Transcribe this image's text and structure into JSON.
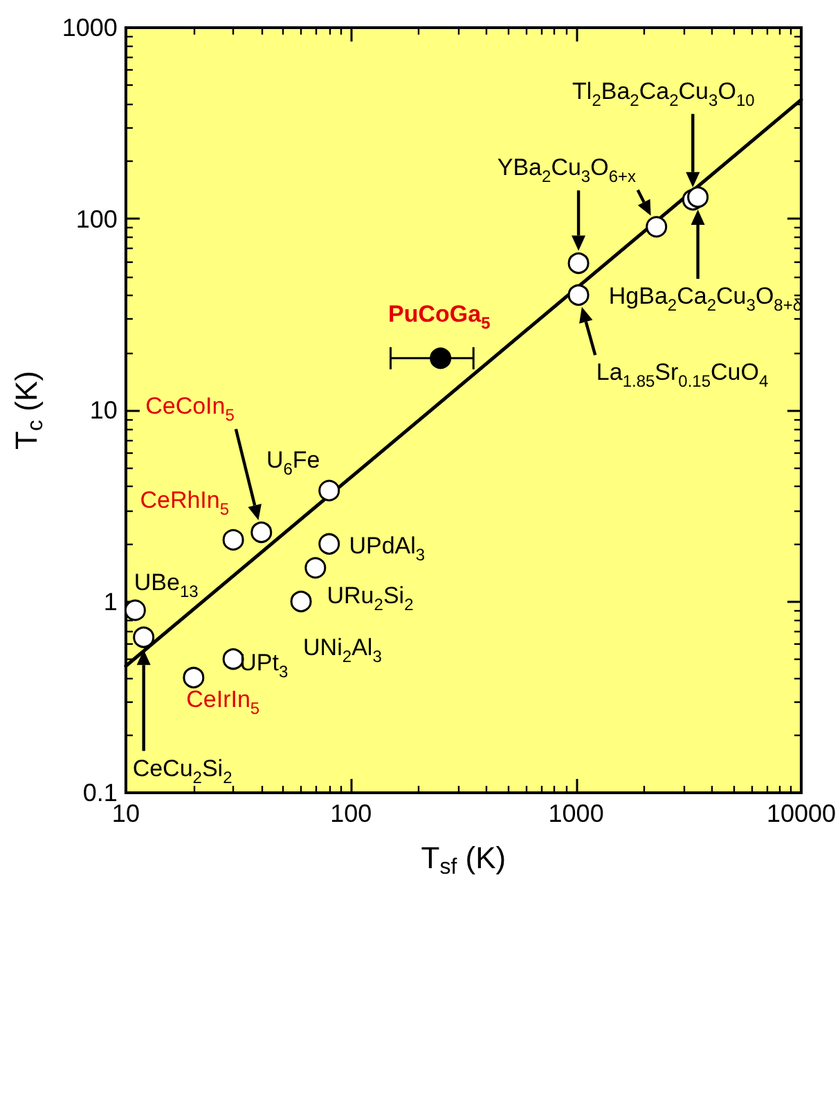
{
  "chart_data": {
    "type": "scatter",
    "xlabel": "T$_{sf}$ (K)",
    "ylabel": "T$_{c}$ (K)",
    "log": "xy",
    "xlim": [
      10,
      10000
    ],
    "ylim": [
      0.1,
      1000
    ],
    "xticks": [
      10,
      100,
      1000,
      10000
    ],
    "yticks": [
      0.1,
      1,
      10,
      100,
      1000
    ],
    "grid": false,
    "marker": "circle",
    "series": [
      {
        "color": "#ffffff",
        "x": [
          3300,
          3475,
          2275,
          1025,
          1025,
          80,
          80,
          69.5,
          60,
          40,
          30,
          30,
          20,
          11,
          12
        ],
        "values": [
          126,
          130,
          91,
          58.7,
          40,
          3.8,
          2.0,
          1.5,
          1.0,
          2.3,
          2.1,
          0.5,
          0.4,
          0.9,
          0.65
        ]
      },
      {
        "color": "#000000",
        "x": [
          250
        ],
        "values": [
          18.7
        ],
        "xerrors": [
          [
            150,
            350
          ]
        ]
      },
      {
        "type": "line",
        "color": "#000000",
        "marker": "none",
        "line_style": "solid",
        "x": [
          10,
          10000
        ],
        "values": [
          0.46,
          420
        ]
      }
    ],
    "annotations": [
      "Tl$_{2}$Ba$_{2}$Ca$_{2}$Cu$_{3}$O$_{10}$",
      "HgBa$_{2}$Ca$_{2}$Cu$_{3}$O$_{8+δ}$",
      "YBa$_{2}$Cu$_{3}$O$_{6+x}$",
      {
        "text": "La$_{1.85}$Sr$_{0.15}$CuO$_{4}$",
        "x": 1025,
        "y": 40
      },
      {
        "text": "PuCoGa$_{5}$",
        "x": 250,
        "y": 18.7
      },
      {
        "text": "U$_{6}$Fe",
        "x": 80,
        "y": 3.8
      },
      {
        "text": "UPdAl$_{3}$",
        "x": 80,
        "y": 2.0
      },
      {
        "text": "URu$_{2}$Si$_{2}$",
        "x": 69.5,
        "y": 1.5
      },
      {
        "text": "UNi$_{2}$Al$_{3}$",
        "x": 60,
        "y": 1.0
      },
      {
        "text": "UPt$_{3}$",
        "x": 30,
        "y": 0.5
      },
      {
        "text": "CeIrIn$_{5}$",
        "x": 20,
        "y": 0.4
      },
      "CeCoIn$_{5}$",
      {
        "text": "CeRhIn$_{5}$",
        "x": 30,
        "y": 2.1
      },
      {
        "text": "UBe$_{13}$",
        "x": 11,
        "y": 0.9
      },
      "CeCu$_{2}$Si$_{2}$"
    ]
  }
}
